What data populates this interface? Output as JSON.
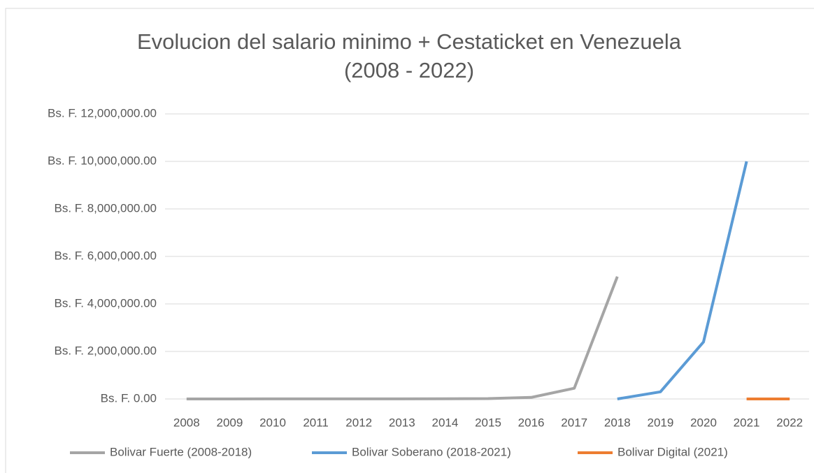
{
  "chart_data": {
    "type": "line",
    "title": [
      "Evolucion del salario minimo + Cestaticket en Venezuela",
      "(2008 - 2022)"
    ],
    "categories": [
      "2008",
      "2009",
      "2010",
      "2011",
      "2012",
      "2013",
      "2014",
      "2015",
      "2016",
      "2017",
      "2018",
      "2019",
      "2020",
      "2021",
      "2022"
    ],
    "series": [
      {
        "name": "Bolivar Fuerte (2008-2018)",
        "color": "#a5a5a5",
        "values": [
          1000,
          1200,
          1500,
          2000,
          3000,
          4000,
          6000,
          15000,
          65000,
          450000,
          5150000,
          null,
          null,
          null,
          null
        ]
      },
      {
        "name": "Bolivar Soberano (2018-2021)",
        "color": "#5b9bd5",
        "values": [
          null,
          null,
          null,
          null,
          null,
          null,
          null,
          null,
          null,
          null,
          0,
          300000,
          2400000,
          10000000,
          null
        ]
      },
      {
        "name": "Bolivar Digital (2021)",
        "color": "#ed7d31",
        "values": [
          null,
          null,
          null,
          null,
          null,
          null,
          null,
          null,
          null,
          null,
          null,
          null,
          null,
          0,
          0
        ]
      }
    ],
    "ylim": [
      0,
      12000000
    ],
    "yticks": [
      {
        "value": 0,
        "label": "Bs. F. 0.00"
      },
      {
        "value": 2000000,
        "label": "Bs. F. 2,000,000.00"
      },
      {
        "value": 4000000,
        "label": "Bs. F. 4,000,000.00"
      },
      {
        "value": 6000000,
        "label": "Bs. F. 6,000,000.00"
      },
      {
        "value": 8000000,
        "label": "Bs. F. 8,000,000.00"
      },
      {
        "value": 10000000,
        "label": "Bs. F. 10,000,000.00"
      },
      {
        "value": 12000000,
        "label": "Bs. F. 12,000,000.00"
      }
    ],
    "grid": true,
    "legend": "bottom"
  }
}
